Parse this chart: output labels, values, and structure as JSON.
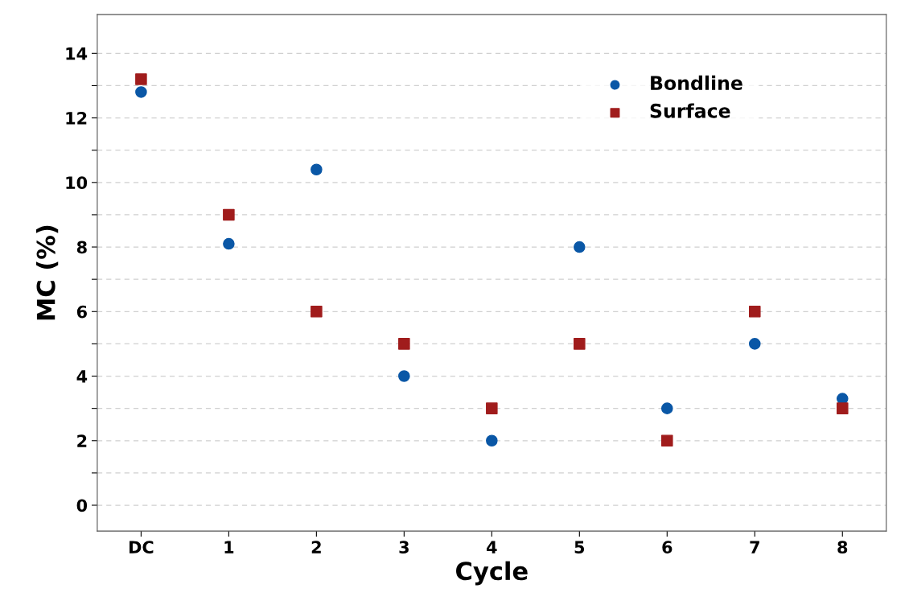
{
  "chart_data": {
    "type": "scatter",
    "xlabel": "Cycle",
    "ylabel": "MC (%)",
    "categories": [
      "DC",
      "1",
      "2",
      "3",
      "4",
      "5",
      "6",
      "7",
      "8"
    ],
    "series": [
      {
        "name": "Bondline",
        "color": "#0a57a6",
        "marker": "circle",
        "values": [
          12.8,
          8.1,
          10.4,
          4.0,
          2.0,
          8.0,
          3.0,
          5.0,
          3.3
        ]
      },
      {
        "name": "Surface",
        "color": "#a01c1c",
        "marker": "square",
        "values": [
          13.2,
          9.0,
          6.0,
          5.0,
          3.0,
          5.0,
          2.0,
          6.0,
          3.0
        ]
      }
    ],
    "ylim": [
      -0.8,
      15.2
    ],
    "yticks": [
      0,
      {
        "value": 1,
        "label": null
      },
      2,
      {
        "value": 3,
        "label": null
      },
      4,
      {
        "value": 5,
        "label": null
      },
      6,
      {
        "value": 7,
        "label": null
      },
      8,
      {
        "value": 9,
        "label": null
      },
      10,
      {
        "value": 11,
        "label": null
      },
      12,
      {
        "value": 13,
        "label": null
      },
      14
    ],
    "grid": "y",
    "legend": "top right"
  }
}
